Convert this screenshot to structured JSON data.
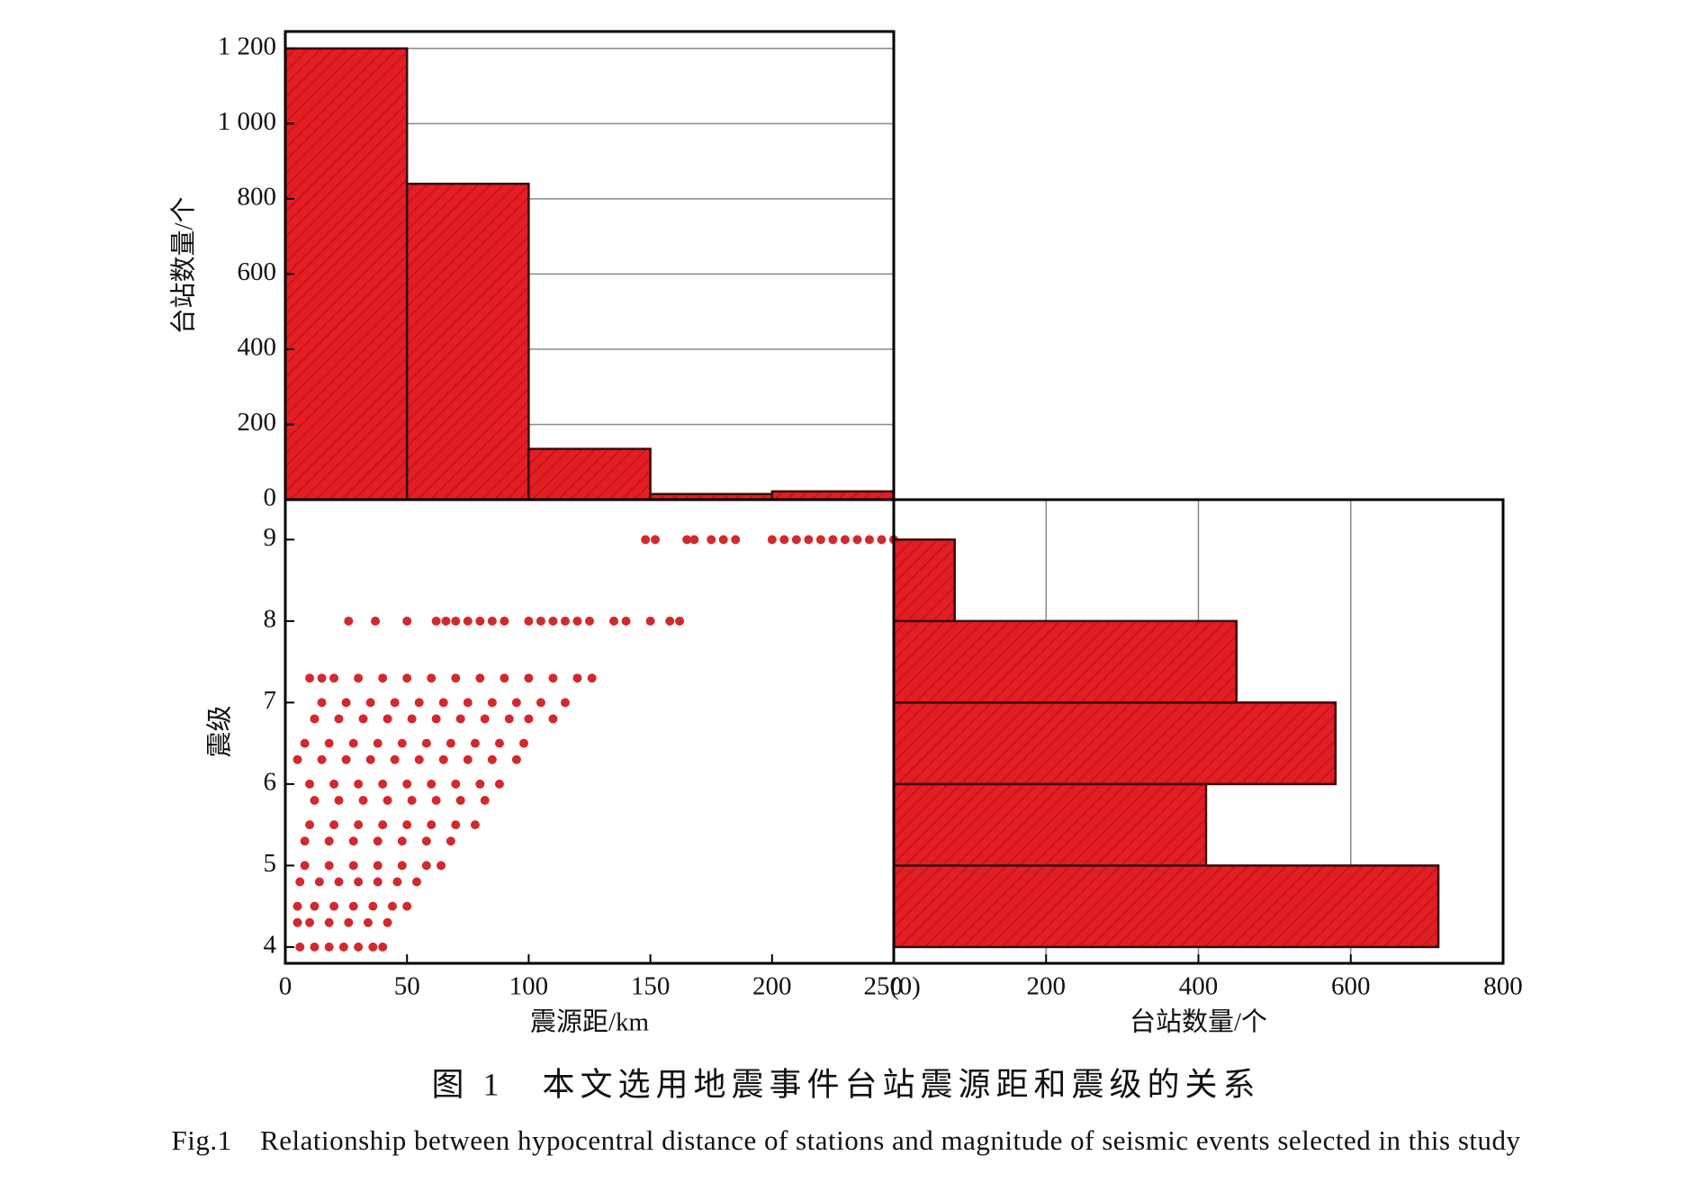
{
  "chart_data": [
    {
      "type": "histogram",
      "orientation": "vertical",
      "bins": [
        0,
        50,
        100,
        150,
        200,
        250
      ],
      "values": [
        1200,
        840,
        135,
        15,
        22
      ],
      "xlim": [
        0,
        250
      ],
      "ylim": [
        0,
        1245
      ],
      "yticks": [
        0,
        200,
        400,
        600,
        800,
        {
          "value": 1000,
          "label": "1 000"
        },
        {
          "value": 1200,
          "label": "1 200"
        }
      ],
      "ylabel": "台站数量/个",
      "grid": true,
      "color": "#e31e24"
    },
    {
      "type": "scatter",
      "x": [
        148,
        152,
        165,
        168,
        175,
        180,
        185,
        200,
        205,
        210,
        215,
        220,
        225,
        230,
        235,
        240,
        245,
        250,
        26,
        37,
        50,
        62,
        66,
        70,
        75,
        80,
        85,
        90,
        100,
        105,
        110,
        115,
        120,
        125,
        135,
        140,
        150,
        158,
        162,
        10,
        15,
        20,
        30,
        40,
        50,
        60,
        70,
        80,
        90,
        100,
        110,
        120,
        126,
        15,
        25,
        35,
        45,
        55,
        65,
        75,
        85,
        95,
        105,
        115,
        12,
        22,
        32,
        42,
        52,
        62,
        72,
        82,
        92,
        100,
        110,
        8,
        18,
        28,
        38,
        48,
        58,
        68,
        78,
        88,
        98,
        5,
        15,
        25,
        35,
        45,
        55,
        65,
        75,
        85,
        95,
        10,
        20,
        30,
        40,
        50,
        60,
        70,
        80,
        88,
        12,
        22,
        32,
        42,
        52,
        62,
        72,
        82,
        10,
        20,
        30,
        40,
        50,
        60,
        70,
        78,
        8,
        18,
        28,
        38,
        48,
        58,
        68,
        8,
        18,
        28,
        38,
        48,
        58,
        64,
        6,
        14,
        22,
        30,
        38,
        46,
        54,
        5,
        12,
        20,
        28,
        36,
        44,
        50,
        5,
        10,
        18,
        26,
        34,
        42,
        6,
        12,
        18,
        24,
        30,
        36,
        40
      ],
      "y": [
        9,
        9,
        9,
        9,
        9,
        9,
        9,
        9,
        9,
        9,
        9,
        9,
        9,
        9,
        9,
        9,
        9,
        9,
        8,
        8,
        8,
        8,
        8,
        8,
        8,
        8,
        8,
        8,
        8,
        8,
        8,
        8,
        8,
        8,
        8,
        8,
        8,
        8,
        8,
        7.3,
        7.3,
        7.3,
        7.3,
        7.3,
        7.3,
        7.3,
        7.3,
        7.3,
        7.3,
        7.3,
        7.3,
        7.3,
        7.3,
        7,
        7,
        7,
        7,
        7,
        7,
        7,
        7,
        7,
        7,
        7,
        6.8,
        6.8,
        6.8,
        6.8,
        6.8,
        6.8,
        6.8,
        6.8,
        6.8,
        6.8,
        6.8,
        6.5,
        6.5,
        6.5,
        6.5,
        6.5,
        6.5,
        6.5,
        6.5,
        6.5,
        6.5,
        6.3,
        6.3,
        6.3,
        6.3,
        6.3,
        6.3,
        6.3,
        6.3,
        6.3,
        6.3,
        6,
        6,
        6,
        6,
        6,
        6,
        6,
        6,
        6,
        5.8,
        5.8,
        5.8,
        5.8,
        5.8,
        5.8,
        5.8,
        5.8,
        5.5,
        5.5,
        5.5,
        5.5,
        5.5,
        5.5,
        5.5,
        5.5,
        5.3,
        5.3,
        5.3,
        5.3,
        5.3,
        5.3,
        5.3,
        5,
        5,
        5,
        5,
        5,
        5,
        5,
        4.8,
        4.8,
        4.8,
        4.8,
        4.8,
        4.8,
        4.8,
        4.5,
        4.5,
        4.5,
        4.5,
        4.5,
        4.5,
        4.5,
        4.3,
        4.3,
        4.3,
        4.3,
        4.3,
        4.3,
        4,
        4,
        4,
        4,
        4,
        4,
        4
      ],
      "xlim": [
        0,
        250
      ],
      "ylim": [
        3.8,
        9.49
      ],
      "xticks": [
        0,
        50,
        100,
        150,
        200,
        250
      ],
      "yticks": [
        4,
        5,
        6,
        7,
        8,
        9
      ],
      "xlabel": "震源距/km",
      "ylabel": "震级",
      "color": "#d12a2e"
    },
    {
      "type": "histogram",
      "orientation": "horizontal",
      "bins": [
        4,
        5,
        6,
        7,
        8,
        9
      ],
      "values": [
        715,
        410,
        580,
        450,
        80
      ],
      "xlim": [
        0,
        800
      ],
      "ylim": [
        3.8,
        9.49
      ],
      "xticks": [
        {
          "value": 0,
          "label": "(0)"
        },
        200,
        400,
        600,
        800
      ],
      "xlabel": "台站数量/个",
      "grid": true,
      "color": "#e31e24"
    }
  ],
  "caption_cn": "图 1　本文选用地震事件台站震源距和震级的关系",
  "caption_en": "Fig.1　Relationship between hypocentral distance of stations and magnitude of seismic events selected in this study"
}
